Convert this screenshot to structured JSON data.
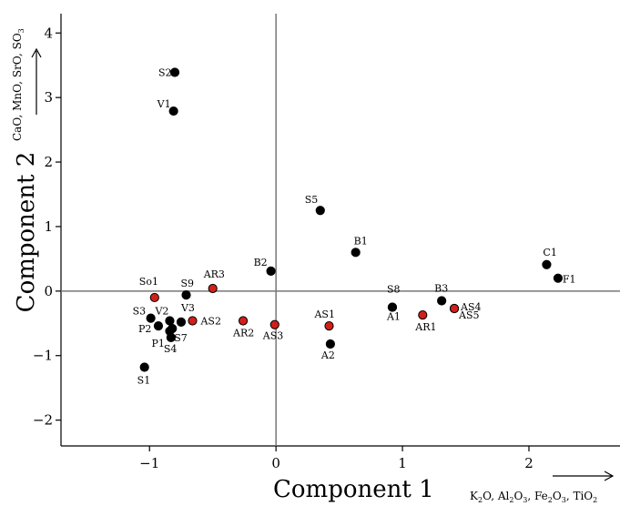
{
  "chart_data": {
    "type": "scatter",
    "xlabel": "Component 1",
    "ylabel": "Component 2",
    "xlim": [
      -1.7,
      2.72
    ],
    "ylim": [
      -2.4,
      4.3
    ],
    "xticks": [
      -1,
      0,
      1,
      2
    ],
    "yticks": [
      -2,
      -1,
      0,
      1,
      2,
      3,
      4
    ],
    "x_direction_note": {
      "parts": [
        "K",
        "2",
        "O, Al",
        "2",
        "O",
        "3",
        ", Fe",
        "2",
        "O",
        "3",
        ", TiO",
        "2"
      ]
    },
    "y_direction_note": {
      "parts": [
        "CaO, MnO, SrO, SO",
        "3"
      ]
    },
    "grid": false,
    "reference_lines": {
      "x": 0,
      "y": 0
    },
    "colors": {
      "black_group": "#000000",
      "red_group": "#d0201a"
    },
    "series": [
      {
        "color": "#000000",
        "points": [
          {
            "label": "S2",
            "x": -0.8,
            "y": 3.39
          },
          {
            "label": "V1",
            "x": -0.81,
            "y": 2.79
          },
          {
            "label": "S5",
            "x": 0.35,
            "y": 1.25
          },
          {
            "label": "B1",
            "x": 0.63,
            "y": 0.6
          },
          {
            "label": "B2",
            "x": -0.04,
            "y": 0.31
          },
          {
            "label": "C1",
            "x": 2.14,
            "y": 0.41
          },
          {
            "label": "F1",
            "x": 2.23,
            "y": 0.2
          },
          {
            "label": "B3",
            "x": 1.31,
            "y": -0.15
          },
          {
            "label": "S8",
            "x": 0.92,
            "y": -0.25
          },
          {
            "label": "A1",
            "x": 0.92,
            "y": -0.25
          },
          {
            "label": "A2",
            "x": 0.43,
            "y": -0.82
          },
          {
            "label": "S9",
            "x": -0.71,
            "y": -0.06
          },
          {
            "label": "S3",
            "x": -0.99,
            "y": -0.42
          },
          {
            "label": "V2",
            "x": -0.84,
            "y": -0.46
          },
          {
            "label": "V3",
            "x": -0.75,
            "y": -0.48
          },
          {
            "label": "P2",
            "x": -0.93,
            "y": -0.54
          },
          {
            "label": "S7",
            "x": -0.82,
            "y": -0.58
          },
          {
            "label": "P1",
            "x": -0.84,
            "y": -0.62
          },
          {
            "label": "S4",
            "x": -0.83,
            "y": -0.72
          },
          {
            "label": "S1",
            "x": -1.04,
            "y": -1.18
          }
        ]
      },
      {
        "color": "#d0201a",
        "points": [
          {
            "label": "So1",
            "x": -0.96,
            "y": -0.1
          },
          {
            "label": "AR3",
            "x": -0.5,
            "y": 0.04
          },
          {
            "label": "AS2",
            "x": -0.66,
            "y": -0.46
          },
          {
            "label": "AR2",
            "x": -0.26,
            "y": -0.46
          },
          {
            "label": "AS3",
            "x": -0.01,
            "y": -0.52
          },
          {
            "label": "AS1",
            "x": 0.42,
            "y": -0.54
          },
          {
            "label": "AR1",
            "x": 1.16,
            "y": -0.37
          },
          {
            "label": "AS4",
            "x": 1.41,
            "y": -0.27
          },
          {
            "label": "AS5",
            "x": 1.41,
            "y": -0.27
          }
        ]
      }
    ]
  }
}
